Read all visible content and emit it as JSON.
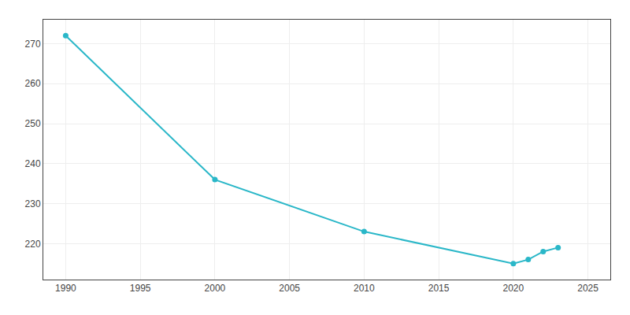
{
  "chart_data": {
    "type": "line",
    "x": [
      1990,
      2000,
      2010,
      2020,
      2021,
      2022,
      2023
    ],
    "values": [
      272,
      236,
      223,
      215,
      216,
      218,
      219
    ],
    "color": "#2ab7c8",
    "marker": "circle",
    "xlim": [
      1988.5,
      2026.5
    ],
    "xticks": [
      1990,
      1995,
      2000,
      2005,
      2010,
      2015,
      2020,
      2025
    ],
    "ylim": [
      211,
      276
    ],
    "yticks": [
      220,
      230,
      240,
      250,
      260,
      270
    ],
    "grid": true
  }
}
